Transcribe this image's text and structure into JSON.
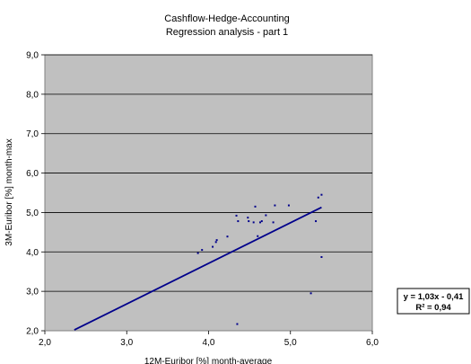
{
  "chart_data": {
    "type": "scatter",
    "title": "Cashflow-Hedge-Accounting",
    "subtitle": "Regression analysis - part 1",
    "xlabel": "12M-Euribor [%]  month-average",
    "ylabel": "3M-Euribor [%]  month-max",
    "xlim": [
      2.0,
      6.0
    ],
    "ylim": [
      2.0,
      9.0
    ],
    "x_ticks": [
      "2,0",
      "3,0",
      "4,0",
      "5,0",
      "6,0"
    ],
    "y_ticks": [
      "2,0",
      "3,0",
      "4,0",
      "5,0",
      "6,0",
      "7,0",
      "8,0",
      "9,0"
    ],
    "x_tick_values": [
      2.0,
      3.0,
      4.0,
      5.0,
      6.0
    ],
    "y_tick_values": [
      2.0,
      3.0,
      4.0,
      5.0,
      6.0,
      7.0,
      8.0,
      9.0
    ],
    "grid": true,
    "background_color": "#c0c0c0",
    "point_color": "#00008b",
    "trendline_color": "#00008b",
    "points": [
      {
        "x": 3.87,
        "y": 3.97
      },
      {
        "x": 3.92,
        "y": 4.05
      },
      {
        "x": 4.05,
        "y": 4.13
      },
      {
        "x": 4.09,
        "y": 4.25
      },
      {
        "x": 4.1,
        "y": 4.3
      },
      {
        "x": 4.23,
        "y": 4.39
      },
      {
        "x": 4.34,
        "y": 4.92
      },
      {
        "x": 4.36,
        "y": 4.78
      },
      {
        "x": 4.35,
        "y": 2.17
      },
      {
        "x": 4.48,
        "y": 4.87
      },
      {
        "x": 4.49,
        "y": 4.78
      },
      {
        "x": 4.55,
        "y": 4.75
      },
      {
        "x": 4.57,
        "y": 5.15
      },
      {
        "x": 4.6,
        "y": 4.4
      },
      {
        "x": 4.63,
        "y": 4.75
      },
      {
        "x": 4.65,
        "y": 4.78
      },
      {
        "x": 4.7,
        "y": 4.93
      },
      {
        "x": 4.79,
        "y": 4.75
      },
      {
        "x": 4.81,
        "y": 5.18
      },
      {
        "x": 4.98,
        "y": 5.18
      },
      {
        "x": 5.25,
        "y": 2.95
      },
      {
        "x": 5.31,
        "y": 4.78
      },
      {
        "x": 5.34,
        "y": 5.38
      },
      {
        "x": 5.38,
        "y": 5.45
      },
      {
        "x": 5.38,
        "y": 3.87
      }
    ],
    "trendline": {
      "x_start": 2.36,
      "x_end": 5.38,
      "slope": 1.03,
      "intercept": -0.41
    },
    "equation_line1": "y = 1,03x - 0,41",
    "equation_line2": "R² = 0,94"
  }
}
